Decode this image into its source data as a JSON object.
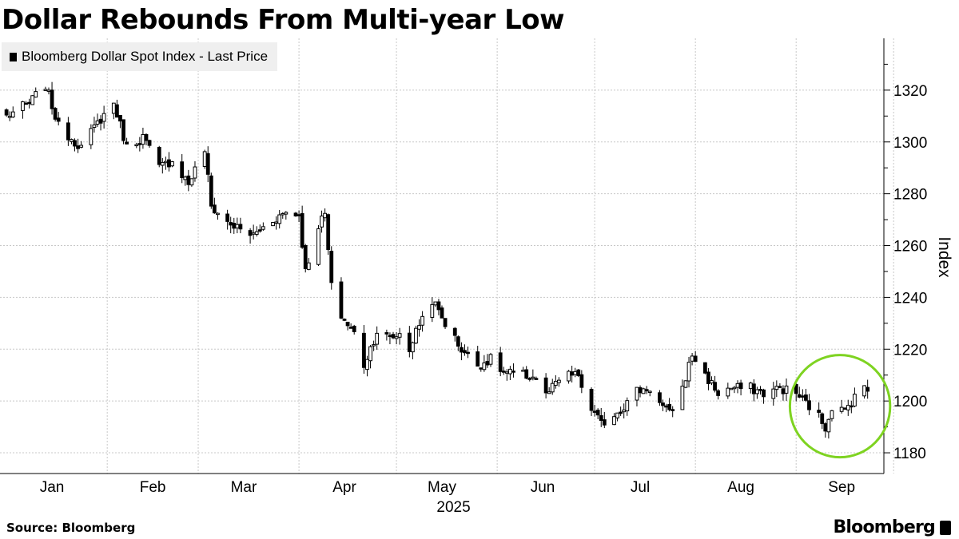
{
  "title": "Dollar Rebounds From Multi-year Low",
  "source": "Source: Bloomberg",
  "brand": "Bloomberg",
  "colors": {
    "candle": "#000000",
    "grid": "#c8c8c8",
    "highlight": "#7ed321",
    "legend_bg": "#efefef"
  },
  "chart_data": {
    "type": "candlestick",
    "title": "Dollar Rebounds From Multi-year Low",
    "ylabel": "Index",
    "xlabel": "2025",
    "ylim": [
      1172,
      1340
    ],
    "y_ticks": [
      1180,
      1200,
      1220,
      1240,
      1260,
      1280,
      1300,
      1320
    ],
    "x_ticks": [
      {
        "label": "Jan",
        "date": "2025-01-15"
      },
      {
        "label": "Feb",
        "date": "2025-02-15"
      },
      {
        "label": "Mar",
        "date": "2025-03-15"
      },
      {
        "label": "Apr",
        "date": "2025-04-15"
      },
      {
        "label": "May",
        "date": "2025-05-15"
      },
      {
        "label": "Jun",
        "date": "2025-06-15"
      },
      {
        "label": "Jul",
        "date": "2025-07-15"
      },
      {
        "label": "Aug",
        "date": "2025-08-15"
      },
      {
        "label": "Sep",
        "date": "2025-09-15"
      }
    ],
    "year_label": "2025",
    "grid": true,
    "legend": {
      "position": "top-left",
      "entries": [
        "Bloomberg Dollar Spot Index - Last Price"
      ]
    },
    "series": [
      {
        "name": "Bloomberg Dollar Spot Index - Last Price",
        "key_points": [
          [
            "2025-01-01",
            1310
          ],
          [
            "2025-01-08",
            1315
          ],
          [
            "2025-01-13",
            1322
          ],
          [
            "2025-01-17",
            1306
          ],
          [
            "2025-01-24",
            1298
          ],
          [
            "2025-01-30",
            1309
          ],
          [
            "2025-02-03",
            1315
          ],
          [
            "2025-02-07",
            1298
          ],
          [
            "2025-02-12",
            1302
          ],
          [
            "2025-02-17",
            1290
          ],
          [
            "2025-02-21",
            1293
          ],
          [
            "2025-02-26",
            1284
          ],
          [
            "2025-03-03",
            1297
          ],
          [
            "2025-03-05",
            1275
          ],
          [
            "2025-03-10",
            1269
          ],
          [
            "2025-03-14",
            1266
          ],
          [
            "2025-03-18",
            1264
          ],
          [
            "2025-03-24",
            1270
          ],
          [
            "2025-03-28",
            1273
          ],
          [
            "2025-04-01",
            1272
          ],
          [
            "2025-04-03",
            1250
          ],
          [
            "2025-04-07",
            1268
          ],
          [
            "2025-04-09",
            1272
          ],
          [
            "2025-04-11",
            1244
          ],
          [
            "2025-04-14",
            1233
          ],
          [
            "2025-04-18",
            1226
          ],
          [
            "2025-04-21",
            1214
          ],
          [
            "2025-04-25",
            1227
          ],
          [
            "2025-04-29",
            1224
          ],
          [
            "2025-05-02",
            1226
          ],
          [
            "2025-05-05",
            1220
          ],
          [
            "2025-05-08",
            1230
          ],
          [
            "2025-05-12",
            1239
          ],
          [
            "2025-05-16",
            1230
          ],
          [
            "2025-05-21",
            1220
          ],
          [
            "2025-05-26",
            1214
          ],
          [
            "2025-05-30",
            1216
          ],
          [
            "2025-06-03",
            1211
          ],
          [
            "2025-06-09",
            1210
          ],
          [
            "2025-06-13",
            1209
          ],
          [
            "2025-06-16",
            1202
          ],
          [
            "2025-06-20",
            1208
          ],
          [
            "2025-06-25",
            1211
          ],
          [
            "2025-06-30",
            1197
          ],
          [
            "2025-07-03",
            1191
          ],
          [
            "2025-07-07",
            1195
          ],
          [
            "2025-07-10",
            1198
          ],
          [
            "2025-07-14",
            1204
          ],
          [
            "2025-07-18",
            1205
          ],
          [
            "2025-07-21",
            1199
          ],
          [
            "2025-07-24",
            1195
          ],
          [
            "2025-07-28",
            1205
          ],
          [
            "2025-07-31",
            1218
          ],
          [
            "2025-08-04",
            1210
          ],
          [
            "2025-08-08",
            1203
          ],
          [
            "2025-08-12",
            1205
          ],
          [
            "2025-08-18",
            1205
          ],
          [
            "2025-08-22",
            1203
          ],
          [
            "2025-08-27",
            1205
          ],
          [
            "2025-09-01",
            1203
          ],
          [
            "2025-09-05",
            1198
          ],
          [
            "2025-09-08",
            1194
          ],
          [
            "2025-09-10",
            1190
          ],
          [
            "2025-09-12",
            1198
          ],
          [
            "2025-09-16",
            1196
          ],
          [
            "2025-09-18",
            1200
          ],
          [
            "2025-09-20",
            1206
          ],
          [
            "2025-09-23",
            1204
          ]
        ]
      }
    ],
    "annotations": [
      {
        "type": "ellipse",
        "color": "#7ed321",
        "around": {
          "from": "2025-09-04",
          "to": "2025-09-25"
        }
      }
    ]
  }
}
